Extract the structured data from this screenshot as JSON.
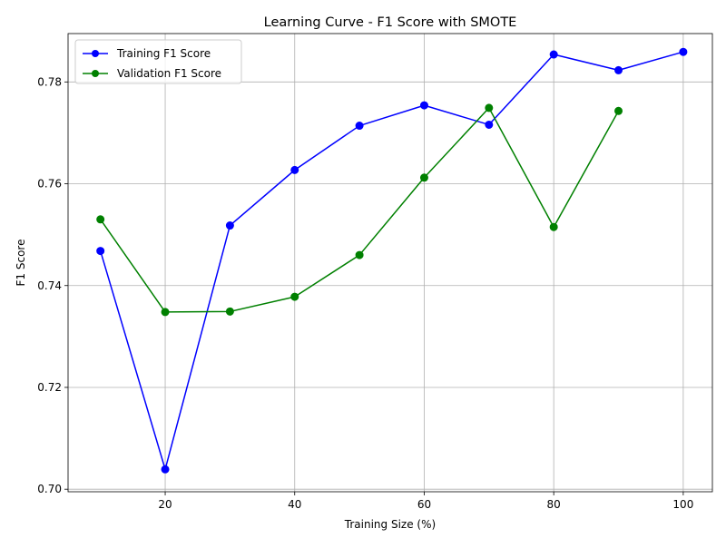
{
  "chart_data": {
    "type": "line",
    "title": "Learning Curve - F1 Score with SMOTE",
    "xlabel": "Training Size (%)",
    "ylabel": "F1 Score",
    "xlim": [
      5,
      104.5
    ],
    "ylim": [
      0.6995,
      0.7895
    ],
    "xticks": [
      20,
      40,
      60,
      80,
      100
    ],
    "xtick_labels": [
      "20",
      "40",
      "60",
      "80",
      "100"
    ],
    "yticks": [
      0.7,
      0.72,
      0.74,
      0.76,
      0.78
    ],
    "ytick_labels": [
      "0.70",
      "0.72",
      "0.74",
      "0.76",
      "0.78"
    ],
    "grid": true,
    "legend_position": "top-left",
    "series": [
      {
        "name": "Training F1 Score",
        "color": "#0000ff",
        "marker": "circle",
        "x": [
          10,
          20,
          30,
          40,
          50,
          60,
          70,
          80,
          90,
          100
        ],
        "y": [
          0.7468,
          0.7039,
          0.7518,
          0.7627,
          0.7714,
          0.7754,
          0.7716,
          0.7854,
          0.7823,
          0.7859
        ]
      },
      {
        "name": "Validation F1 Score",
        "color": "#008000",
        "marker": "circle",
        "x": [
          10,
          20,
          30,
          40,
          50,
          60,
          70,
          80,
          90
        ],
        "y": [
          0.753,
          0.7348,
          0.7349,
          0.7378,
          0.746,
          0.7612,
          0.7749,
          0.7515,
          0.7743
        ]
      }
    ]
  }
}
